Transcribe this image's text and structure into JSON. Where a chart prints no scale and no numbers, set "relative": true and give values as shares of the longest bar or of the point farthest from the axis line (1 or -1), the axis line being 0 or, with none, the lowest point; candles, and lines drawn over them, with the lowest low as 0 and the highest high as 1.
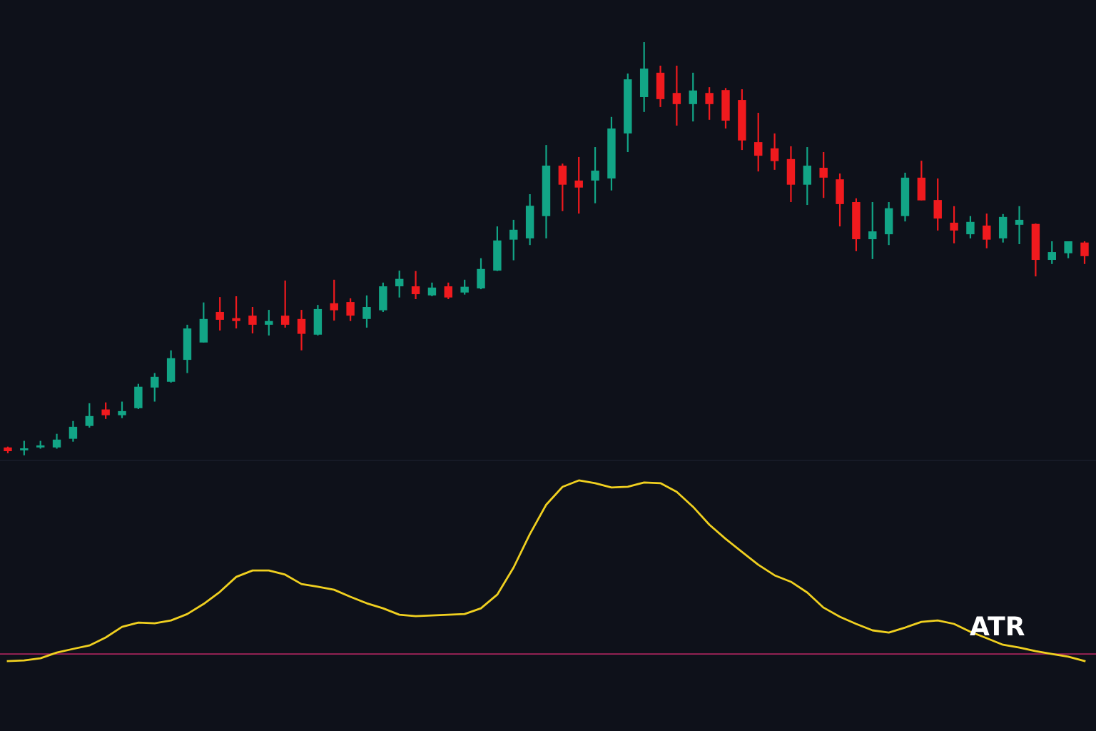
{
  "chart_data": [
    {
      "type": "candlestick",
      "relative": true,
      "categories": [
        null,
        null,
        null,
        null,
        null,
        null,
        null,
        null,
        null,
        null,
        null,
        null,
        null,
        null,
        null,
        null,
        null,
        null,
        null,
        null,
        null,
        null,
        null,
        null,
        null,
        null,
        null,
        null,
        null,
        null,
        null,
        null,
        null,
        null,
        null,
        null,
        null,
        null,
        null,
        null,
        null,
        null,
        null,
        null,
        null,
        null,
        null,
        null,
        null,
        null,
        null,
        null,
        null,
        null,
        null,
        null,
        null,
        null,
        null,
        null,
        null,
        null,
        null,
        null,
        null,
        null,
        null
      ],
      "ohlc": [
        [
          0.019,
          0.021,
          0.005,
          0.01
        ],
        [
          0.012,
          0.035,
          0,
          0.017
        ],
        [
          0.019,
          0.035,
          0.016,
          0.024
        ],
        [
          0.019,
          0.052,
          0.016,
          0.038
        ],
        [
          0.04,
          0.083,
          0.033,
          0.069
        ],
        [
          0.071,
          0.126,
          0.067,
          0.095
        ],
        [
          0.111,
          0.128,
          0.088,
          0.097
        ],
        [
          0.097,
          0.13,
          0.09,
          0.107
        ],
        [
          0.114,
          0.173,
          0.112,
          0.166
        ],
        [
          0.164,
          0.199,
          0.13,
          0.19
        ],
        [
          0.178,
          0.254,
          0.176,
          0.235
        ],
        [
          0.231,
          0.316,
          0.199,
          0.307
        ],
        [
          0.273,
          0.37,
          0.273,
          0.33
        ],
        [
          0.347,
          0.383,
          0.302,
          0.328
        ],
        [
          0.332,
          0.385,
          0.307,
          0.325
        ],
        [
          0.338,
          0.359,
          0.295,
          0.316
        ],
        [
          0.316,
          0.352,
          0.29,
          0.325
        ],
        [
          0.338,
          0.423,
          0.309,
          0.316
        ],
        [
          0.33,
          0.352,
          0.254,
          0.294
        ],
        [
          0.292,
          0.364,
          0.29,
          0.354
        ],
        [
          0.368,
          0.425,
          0.326,
          0.351
        ],
        [
          0.371,
          0.38,
          0.325,
          0.338
        ],
        [
          0.33,
          0.387,
          0.309,
          0.359
        ],
        [
          0.351,
          0.418,
          0.347,
          0.409
        ],
        [
          0.409,
          0.447,
          0.382,
          0.427
        ],
        [
          0.409,
          0.446,
          0.378,
          0.39
        ],
        [
          0.387,
          0.418,
          0.385,
          0.406
        ],
        [
          0.409,
          0.418,
          0.378,
          0.382
        ],
        [
          0.394,
          0.425,
          0.389,
          0.408
        ],
        [
          0.404,
          0.477,
          0.402,
          0.451
        ],
        [
          0.447,
          0.554,
          0.446,
          0.52
        ],
        [
          0.522,
          0.57,
          0.472,
          0.546
        ],
        [
          0.525,
          0.632,
          0.509,
          0.604
        ],
        [
          0.579,
          0.751,
          0.525,
          0.701
        ],
        [
          0.701,
          0.706,
          0.591,
          0.655
        ],
        [
          0.665,
          0.722,
          0.585,
          0.648
        ],
        [
          0.665,
          0.746,
          0.61,
          0.689
        ],
        [
          0.67,
          0.819,
          0.641,
          0.791
        ],
        [
          0.779,
          0.924,
          0.734,
          0.91
        ],
        [
          0.867,
          1,
          0.831,
          0.936
        ],
        [
          0.926,
          0.943,
          0.843,
          0.862
        ],
        [
          0.877,
          0.943,
          0.798,
          0.85
        ],
        [
          0.85,
          0.926,
          0.808,
          0.883
        ],
        [
          0.877,
          0.891,
          0.812,
          0.85
        ],
        [
          0.884,
          0.889,
          0.791,
          0.81
        ],
        [
          0.86,
          0.886,
          0.739,
          0.762
        ],
        [
          0.758,
          0.829,
          0.687,
          0.725
        ],
        [
          0.743,
          0.779,
          0.691,
          0.712
        ],
        [
          0.717,
          0.748,
          0.613,
          0.655
        ],
        [
          0.655,
          0.746,
          0.606,
          0.701
        ],
        [
          0.696,
          0.734,
          0.623,
          0.672
        ],
        [
          0.668,
          0.682,
          0.554,
          0.608
        ],
        [
          0.613,
          0.622,
          0.494,
          0.523
        ],
        [
          0.523,
          0.613,
          0.475,
          0.542
        ],
        [
          0.535,
          0.613,
          0.509,
          0.598
        ],
        [
          0.579,
          0.684,
          0.566,
          0.672
        ],
        [
          0.672,
          0.713,
          0.617,
          0.617
        ],
        [
          0.618,
          0.67,
          0.544,
          0.573
        ],
        [
          0.563,
          0.603,
          0.513,
          0.544
        ],
        [
          0.535,
          0.579,
          0.525,
          0.565
        ],
        [
          0.556,
          0.585,
          0.501,
          0.522
        ],
        [
          0.525,
          0.584,
          0.515,
          0.577
        ],
        [
          0.558,
          0.603,
          0.511,
          0.57
        ],
        [
          0.56,
          0.561,
          0.433,
          0.473
        ],
        [
          0.473,
          0.518,
          0.463,
          0.492
        ],
        [
          0.489,
          0.518,
          0.477,
          0.518
        ],
        [
          0.515,
          0.518,
          0.463,
          0.482
        ]
      ],
      "colors": [
        "#f01a1e",
        "#12a586",
        "#12a586",
        "#12a586",
        "#12a586",
        "#12a586",
        "#f01a1e",
        "#12a586",
        "#12a586",
        "#12a586",
        "#12a586",
        "#12a586",
        "#12a586",
        "#f01a1e",
        "#f01a1e",
        "#f01a1e",
        "#12a586",
        "#f01a1e",
        "#f01a1e",
        "#12a586",
        "#f01a1e",
        "#f01a1e",
        "#12a586",
        "#12a586",
        "#12a586",
        "#f01a1e",
        "#12a586",
        "#f01a1e",
        "#12a586",
        "#12a586",
        "#12a586",
        "#12a586",
        "#12a586",
        "#12a586",
        "#f01a1e",
        "#f01a1e",
        "#12a586",
        "#12a586",
        "#12a586",
        "#12a586",
        "#f01a1e",
        "#f01a1e",
        "#12a586",
        "#f01a1e",
        "#f01a1e",
        "#f01a1e",
        "#f01a1e",
        "#f01a1e",
        "#f01a1e",
        "#12a586",
        "#f01a1e",
        "#f01a1e",
        "#f01a1e",
        "#12a586",
        "#12a586",
        "#12a586",
        "#f01a1e",
        "#f01a1e",
        "#f01a1e",
        "#12a586",
        "#f01a1e",
        "#12a586",
        "#12a586",
        "#f01a1e",
        "#12a586",
        "#12a586",
        "#f01a1e"
      ]
    },
    {
      "type": "line",
      "relative": true,
      "categories": [
        null,
        null,
        null,
        null,
        null,
        null,
        null,
        null,
        null,
        null,
        null,
        null,
        null,
        null,
        null,
        null,
        null,
        null,
        null,
        null,
        null,
        null,
        null,
        null,
        null,
        null,
        null,
        null,
        null,
        null,
        null,
        null,
        null,
        null,
        null,
        null,
        null,
        null,
        null,
        null,
        null,
        null,
        null,
        null,
        null,
        null,
        null,
        null,
        null,
        null,
        null,
        null,
        null,
        null,
        null,
        null,
        null,
        null,
        null,
        null,
        null,
        null,
        null,
        null,
        null,
        null,
        null
      ],
      "series": [
        {
          "color": "#f0d020",
          "values": [
            -0.041,
            -0.037,
            -0.025,
            0.008,
            0.029,
            0.049,
            0.095,
            0.156,
            0.181,
            0.177,
            0.193,
            0.23,
            0.288,
            0.358,
            0.444,
            0.481,
            0.481,
            0.457,
            0.403,
            0.387,
            0.37,
            0.329,
            0.292,
            0.263,
            0.226,
            0.218,
            0.222,
            0.226,
            0.23,
            0.263,
            0.342,
            0.498,
            0.691,
            0.86,
            0.963,
            1,
            0.984,
            0.959,
            0.963,
            0.988,
            0.984,
            0.934,
            0.848,
            0.745,
            0.663,
            0.588,
            0.514,
            0.453,
            0.416,
            0.354,
            0.267,
            0.214,
            0.173,
            0.136,
            0.123,
            0.152,
            0.185,
            0.193,
            0.173,
            0.128,
            0.091,
            0.053,
            0.037,
            0.016,
            0,
            -0.016,
            -0.041
          ]
        }
      ],
      "ref_lines": [
        {
          "axis": "y",
          "value": 0,
          "color": "#a8245c"
        }
      ],
      "annotations": [
        "ATR"
      ]
    }
  ]
}
